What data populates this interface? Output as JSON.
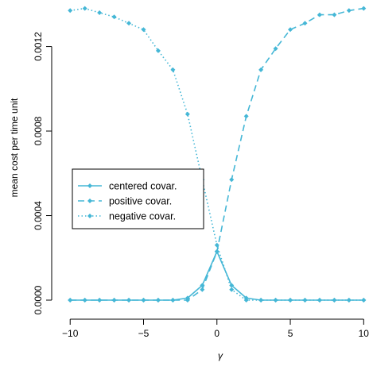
{
  "chart_data": {
    "type": "line",
    "title": "",
    "xlabel": "γ",
    "ylabel": "mean cost per time unit",
    "xlim": [
      -10.5,
      10.2
    ],
    "ylim": [
      -3e-05,
      0.00142
    ],
    "x": [
      -10,
      -9,
      -8,
      -7,
      -6,
      -5,
      -4,
      -3,
      -2,
      -1,
      0,
      1,
      2,
      3,
      4,
      5,
      6,
      7,
      8,
      9,
      10
    ],
    "xticks": [
      -10,
      -5,
      0,
      5,
      10
    ],
    "xtick_labels": [
      "−10",
      "−5",
      "0",
      "5",
      "10"
    ],
    "yticks": [
      0.0,
      0.0004,
      0.0008,
      0.0012
    ],
    "ytick_labels": [
      "0.0000",
      "0.0004",
      "0.0008",
      "0.0012"
    ],
    "color": "#45b7d6",
    "legend_position": "left-middle",
    "series": [
      {
        "name": "centered covar.",
        "linestyle": "solid",
        "values": [
          0.0,
          0.0,
          0.0,
          0.0,
          0.0,
          0.0,
          0.0,
          0.0,
          1e-05,
          7e-05,
          0.00023,
          7e-05,
          1e-05,
          0.0,
          0.0,
          0.0,
          0.0,
          0.0,
          0.0,
          0.0,
          0.0
        ]
      },
      {
        "name": "positive covar.",
        "linestyle": "dashed",
        "values": [
          0.0,
          0.0,
          0.0,
          0.0,
          0.0,
          0.0,
          0.0,
          0.0,
          0.0,
          5e-05,
          0.00023,
          0.00057,
          0.00087,
          0.00109,
          0.00119,
          0.00128,
          0.00131,
          0.00135,
          0.00135,
          0.00137,
          0.00138
        ]
      },
      {
        "name": "negative covar.",
        "linestyle": "dotted",
        "values": [
          0.00137,
          0.00138,
          0.00136,
          0.00134,
          0.00131,
          0.00128,
          0.00118,
          0.00109,
          0.00088,
          0.00057,
          0.00026,
          5e-05,
          0.0,
          0.0,
          0.0,
          0.0,
          0.0,
          0.0,
          0.0,
          0.0,
          0.0
        ]
      }
    ]
  }
}
